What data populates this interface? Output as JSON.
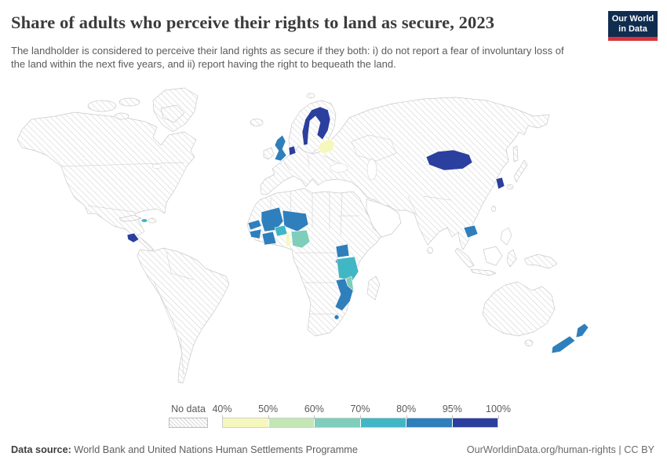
{
  "header": {
    "title": "Share of adults who perceive their rights to land as secure, 2023",
    "subtitle": "The landholder is considered to perceive their land rights as secure if they both: i) do not report a fear of involuntary loss of the land within the next five years, and ii) report having the right to bequeath the land.",
    "logo": {
      "line1": "Our World",
      "line2": "in Data"
    }
  },
  "legend": {
    "no_data_label": "No data",
    "stops": [
      "40%",
      "50%",
      "60%",
      "70%",
      "80%",
      "95%",
      "100%"
    ],
    "bins": [
      {
        "range": "40-50%",
        "color": "#f5f8bc"
      },
      {
        "range": "50-60%",
        "color": "#c2e7b5"
      },
      {
        "range": "60-70%",
        "color": "#7fcdbb"
      },
      {
        "range": "70-80%",
        "color": "#41b6c4"
      },
      {
        "range": "80-95%",
        "color": "#2f7fbc"
      },
      {
        "range": "95-100%",
        "color": "#2b3f9e"
      }
    ],
    "no_data_hatch_color": "#d9d9d9"
  },
  "footer": {
    "source_label": "Data source:",
    "source_text": " World Bank and United Nations Human Settlements Programme",
    "right_text": "OurWorldinData.org/human-rights | CC BY"
  },
  "chart_data": {
    "type": "choropleth_map",
    "title": "Share of adults who perceive their rights to land as secure",
    "year": 2023,
    "unit": "% of adults",
    "legend_position": "bottom",
    "bin_edges_percent": [
      40,
      50,
      60,
      70,
      80,
      95,
      100
    ],
    "countries": [
      {
        "id": "sweden",
        "name": "Sweden",
        "bin": "95-100%"
      },
      {
        "id": "finland",
        "name": "Finland",
        "bin": "95-100%"
      },
      {
        "id": "netherlands",
        "name": "Netherlands",
        "bin": "95-100%"
      },
      {
        "id": "united-kingdom",
        "name": "United Kingdom",
        "bin": "80-95%"
      },
      {
        "id": "belarus",
        "name": "Belarus",
        "bin": "40-50%"
      },
      {
        "id": "mongolia",
        "name": "Mongolia",
        "bin": "95-100%"
      },
      {
        "id": "south-korea",
        "name": "South Korea",
        "bin": "95-100%"
      },
      {
        "id": "cambodia",
        "name": "Cambodia",
        "bin": "80-95%"
      },
      {
        "id": "costa-rica",
        "name": "Costa Rica",
        "bin": "95-100%"
      },
      {
        "id": "jamaica",
        "name": "Jamaica",
        "bin": "70-80%"
      },
      {
        "id": "senegal",
        "name": "Senegal",
        "bin": "80-95%"
      },
      {
        "id": "mali",
        "name": "Mali",
        "bin": "80-95%"
      },
      {
        "id": "niger",
        "name": "Niger",
        "bin": "80-95%"
      },
      {
        "id": "guinea",
        "name": "Guinea",
        "bin": "80-95%"
      },
      {
        "id": "cote-divoire",
        "name": "Côte d'Ivoire",
        "bin": "80-95%"
      },
      {
        "id": "burkina-faso",
        "name": "Burkina Faso",
        "bin": "70-80%"
      },
      {
        "id": "benin",
        "name": "Benin",
        "bin": "40-50%"
      },
      {
        "id": "nigeria",
        "name": "Nigeria",
        "bin": "60-70%"
      },
      {
        "id": "uganda",
        "name": "Uganda",
        "bin": "80-95%"
      },
      {
        "id": "rwanda",
        "name": "Rwanda",
        "bin": "95-100%"
      },
      {
        "id": "tanzania",
        "name": "Tanzania",
        "bin": "70-80%"
      },
      {
        "id": "malawi",
        "name": "Malawi",
        "bin": "60-70%"
      },
      {
        "id": "mozambique",
        "name": "Mozambique",
        "bin": "80-95%"
      },
      {
        "id": "eswatini",
        "name": "Eswatini",
        "bin": "80-95%"
      },
      {
        "id": "new-zealand",
        "name": "New Zealand",
        "bin": "80-95%"
      }
    ],
    "no_data_note": "All other countries/regions shown with gray diagonal hatching (No data)"
  }
}
